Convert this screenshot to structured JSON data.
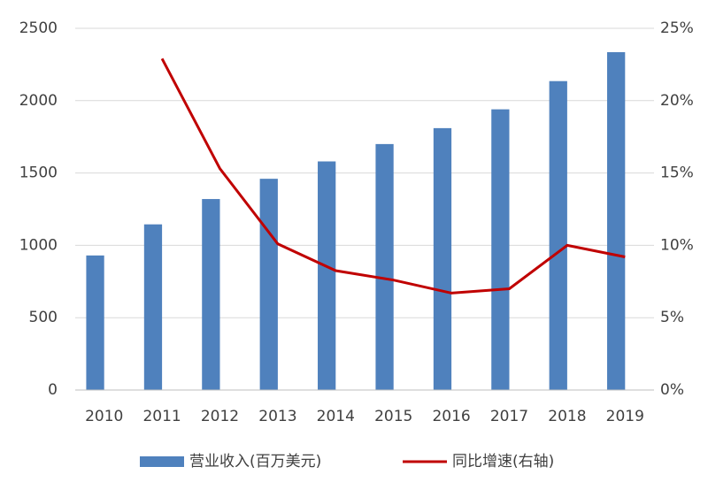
{
  "chart_data": {
    "type": "bar-line",
    "categories": [
      "2010",
      "2011",
      "2012",
      "2013",
      "2014",
      "2015",
      "2016",
      "2017",
      "2018",
      "2019"
    ],
    "series": [
      {
        "name": "营业收入(百万美元)",
        "type": "bar",
        "color": "#4f81bd",
        "values": [
          930,
          1145,
          1320,
          1460,
          1580,
          1700,
          1810,
          1940,
          2135,
          2335
        ]
      },
      {
        "name": "同比增速(右轴)",
        "type": "line",
        "axis": "y2",
        "color": "#c00000",
        "values": [
          null,
          22.9,
          15.3,
          10.1,
          8.25,
          7.6,
          6.7,
          7.0,
          10.0,
          9.2
        ]
      }
    ],
    "ylim": [
      0,
      2500
    ],
    "yticks": [
      0,
      500,
      1000,
      1500,
      2000,
      2500
    ],
    "y2lim": [
      0,
      25
    ],
    "y2ticks": [
      {
        "value": 0,
        "label": "0%"
      },
      {
        "value": 5,
        "label": "5%"
      },
      {
        "value": 10,
        "label": "10%"
      },
      {
        "value": 15,
        "label": "15%"
      },
      {
        "value": 20,
        "label": "20%"
      },
      {
        "value": 25,
        "label": "25%"
      }
    ],
    "grid": true,
    "legend": "bottom"
  }
}
